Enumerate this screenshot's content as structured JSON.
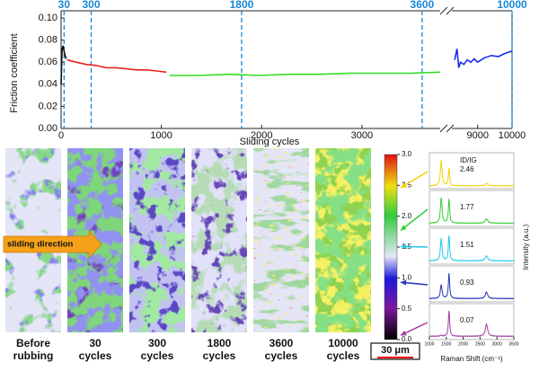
{
  "chart_data": [
    {
      "type": "line",
      "y_label": "Friction coefficient",
      "x_label": "Sliding cycles",
      "ylim": [
        0,
        0.1
      ],
      "yticks": [
        {
          "value": 0,
          "label": "0.00"
        },
        {
          "value": 0.02,
          "label": "0.02"
        },
        {
          "value": 0.04,
          "label": "0.04"
        },
        {
          "value": 0.06,
          "label": "0.06"
        },
        {
          "value": 0.08,
          "label": "0.08"
        },
        {
          "value": 0.1,
          "label": "0.10"
        }
      ],
      "x_segments": [
        {
          "xlim": [
            0,
            3780
          ],
          "xticks": [
            0,
            1000,
            2000,
            3000
          ]
        },
        {
          "xlim": [
            8250,
            10000
          ],
          "xticks": [
            9000,
            10000
          ]
        }
      ],
      "vlines": {
        "color": "#1a86d8",
        "values": [
          30,
          300,
          1800,
          3600,
          10000
        ]
      },
      "series": [
        {
          "color": "#111111",
          "x": [
            0,
            10,
            20,
            30,
            40,
            50
          ],
          "values": [
            0.04,
            0.072,
            0.075,
            0.07,
            0.066,
            0.063
          ]
        },
        {
          "color": "#e8231e",
          "x": [
            60,
            150,
            250,
            350,
            450,
            550,
            650,
            750,
            850,
            950,
            1050
          ],
          "values": [
            0.062,
            0.06,
            0.058,
            0.057,
            0.055,
            0.055,
            0.054,
            0.053,
            0.053,
            0.052,
            0.051
          ]
        },
        {
          "color": "#33dd22",
          "x": [
            1080,
            1380,
            1680,
            1980,
            2280,
            2580,
            2880,
            3180,
            3480,
            3780
          ],
          "values": [
            0.048,
            0.048,
            0.049,
            0.048,
            0.049,
            0.049,
            0.05,
            0.05,
            0.05,
            0.051
          ]
        },
        {
          "color": "#1a2ee8",
          "x": [
            8330,
            8400,
            8450,
            8500,
            8600,
            8700,
            8800,
            8900,
            9000,
            9200,
            9400,
            9600,
            9800,
            10000
          ],
          "values": [
            0.062,
            0.072,
            0.055,
            0.06,
            0.058,
            0.062,
            0.06,
            0.063,
            0.06,
            0.064,
            0.066,
            0.065,
            0.068,
            0.07
          ]
        }
      ]
    },
    {
      "type": "colorbar",
      "ylim": [
        0,
        3
      ],
      "yticks": [
        {
          "value": 0,
          "label": "0.0"
        },
        {
          "value": 0.5,
          "label": "0.5"
        },
        {
          "value": 1,
          "label": "1.0"
        },
        {
          "value": 1.5,
          "label": "1.5"
        },
        {
          "value": 2,
          "label": "2.0"
        },
        {
          "value": 2.5,
          "label": "2.5"
        },
        {
          "value": 3,
          "label": "3.0"
        }
      ]
    },
    {
      "type": "spectra",
      "x_label": "Raman Shift (cm⁻¹)",
      "y_label": "Intensity (a.u.)",
      "ratio_label": "ID/IG",
      "xlim": [
        1000,
        3500
      ],
      "xticks": [
        1000,
        1500,
        2000,
        2500,
        3000,
        3500
      ],
      "series": [
        {
          "color": "#f2d200",
          "values": [
            2.46
          ]
        },
        {
          "color": "#33cc33",
          "values": [
            1.77
          ]
        },
        {
          "color": "#22c8e8",
          "values": [
            1.51
          ]
        },
        {
          "color": "#2233bb",
          "values": [
            0.93
          ]
        },
        {
          "color": "#a03ca0",
          "values": [
            0.07
          ]
        }
      ]
    }
  ],
  "maps": {
    "sliding_direction": "sliding direction",
    "scale_bar": "30 μm",
    "panels": [
      [
        "Before",
        "rubbing"
      ],
      [
        "30",
        "cycles"
      ],
      [
        "300",
        "cycles"
      ],
      [
        "1800",
        "cycles"
      ],
      [
        "3600",
        "cycles"
      ],
      [
        "10000",
        "cycles"
      ]
    ]
  }
}
